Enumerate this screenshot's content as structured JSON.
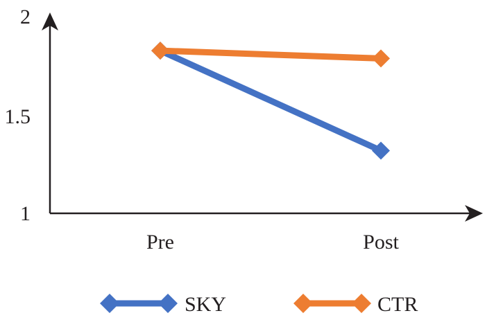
{
  "chart_data": {
    "type": "line",
    "title": "",
    "xlabel": "",
    "ylabel": "",
    "categories": [
      "Pre",
      "Post"
    ],
    "ylim": [
      1,
      2
    ],
    "yticks": [
      "1",
      "1.5",
      "2"
    ],
    "grid": false,
    "legend_position": "bottom",
    "marker": "diamond",
    "series": [
      {
        "name": "SKY",
        "color": "#4472c4",
        "values": [
          1.83,
          1.32
        ]
      },
      {
        "name": "CTR",
        "color": "#ed7d31",
        "values": [
          1.83,
          1.79
        ]
      }
    ]
  }
}
